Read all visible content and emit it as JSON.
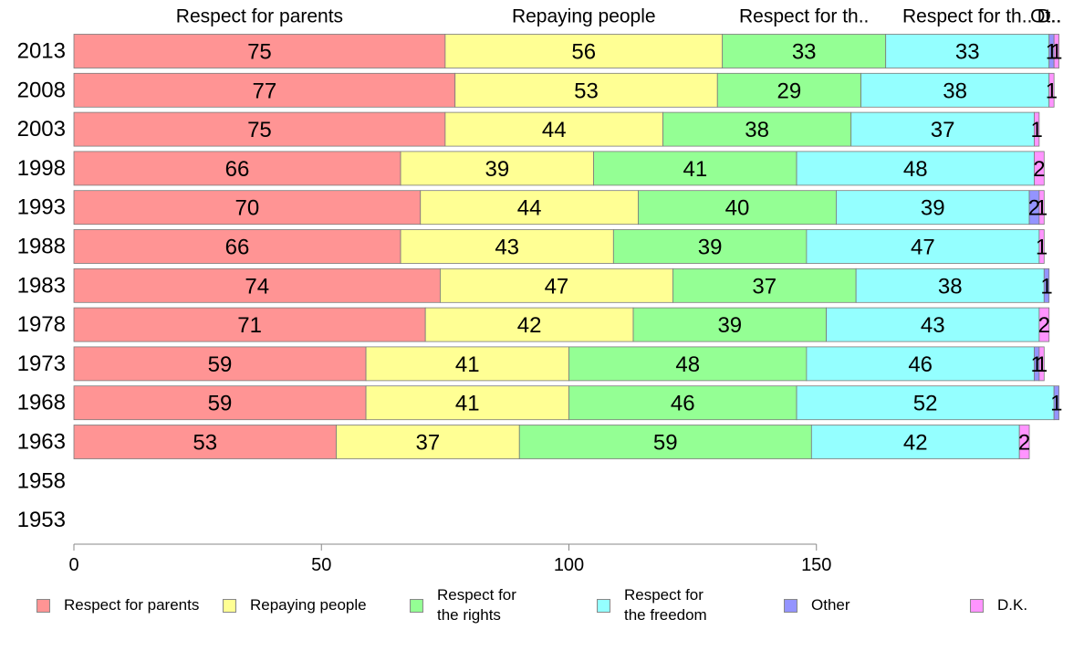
{
  "chart_data": {
    "type": "bar",
    "orientation": "horizontal",
    "stacked": true,
    "categories": [
      "2013",
      "2008",
      "2003",
      "1998",
      "1993",
      "1988",
      "1983",
      "1978",
      "1973",
      "1968",
      "1963",
      "1958",
      "1953"
    ],
    "series": [
      {
        "name": "Respect for parents",
        "short": "Respect for parents",
        "color": "#ff9494",
        "values": [
          75,
          77,
          75,
          66,
          70,
          66,
          74,
          71,
          59,
          59,
          53,
          null,
          null
        ]
      },
      {
        "name": "Repaying people",
        "short": "Repaying people",
        "color": "#ffff94",
        "values": [
          56,
          53,
          44,
          39,
          44,
          43,
          47,
          42,
          41,
          41,
          37,
          null,
          null
        ]
      },
      {
        "name": "Respect for the rights",
        "short": "Respect for th..",
        "color": "#94ff94",
        "values": [
          33,
          29,
          38,
          41,
          40,
          39,
          37,
          39,
          48,
          46,
          59,
          null,
          null
        ]
      },
      {
        "name": "Respect for the freedom",
        "short": "Respect for th..",
        "color": "#94ffff",
        "values": [
          33,
          38,
          37,
          48,
          39,
          47,
          38,
          43,
          46,
          52,
          42,
          null,
          null
        ]
      },
      {
        "name": "Other",
        "short": "Ot..",
        "color": "#9494ff",
        "values": [
          1,
          0,
          0,
          0,
          2,
          0,
          1,
          0,
          1,
          1,
          0,
          null,
          null
        ]
      },
      {
        "name": "D.K.",
        "short": "D..",
        "color": "#ff94ff",
        "values": [
          1,
          1,
          1,
          2,
          1,
          1,
          0,
          2,
          1,
          0,
          2,
          null,
          null
        ]
      }
    ],
    "xticks": [
      0,
      50,
      100,
      150
    ],
    "xlim": [
      0,
      200
    ],
    "grid": false,
    "legend_position": "bottom",
    "legend_labels": [
      "Respect for parents",
      "Repaying people",
      "Respect for\nthe rights",
      "Respect for\nthe freedom",
      "Other",
      "D.K."
    ]
  }
}
